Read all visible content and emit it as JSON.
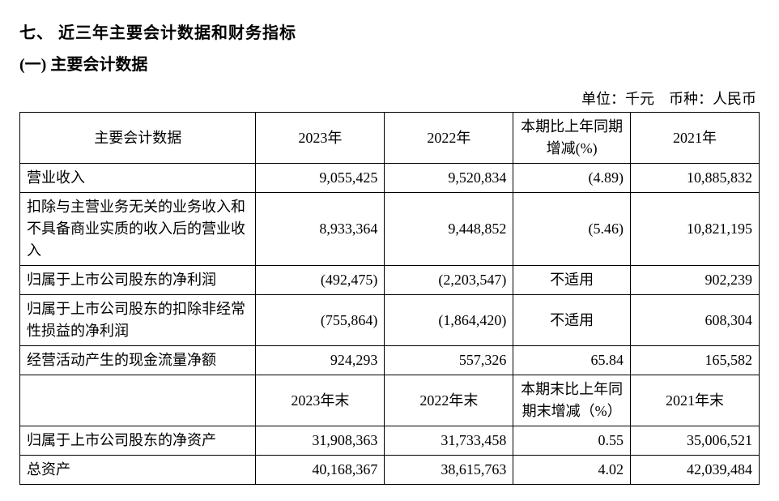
{
  "heading": "七、 近三年主要会计数据和财务指标",
  "subheading": "(一) 主要会计数据",
  "unit_label": "单位：千元",
  "currency_label": "币种：人民币",
  "table": {
    "columns_top": {
      "label": "主要会计数据",
      "y2023": "2023年",
      "y2022": "2022年",
      "change": "本期比上年同期增减(%)",
      "y2021": "2021年"
    },
    "rows_top": [
      {
        "label": "营业收入",
        "y2023": "9,055,425",
        "y2022": "9,520,834",
        "change": "(4.89)",
        "y2021": "10,885,832"
      },
      {
        "label": "扣除与主营业务无关的业务收入和不具备商业实质的收入后的营业收入",
        "y2023": "8,933,364",
        "y2022": "9,448,852",
        "change": "(5.46)",
        "y2021": "10,821,195"
      },
      {
        "label": "归属于上市公司股东的净利润",
        "y2023": "(492,475)",
        "y2022": "(2,203,547)",
        "change": "不适用",
        "y2021": "902,239"
      },
      {
        "label": "归属于上市公司股东的扣除非经常性损益的净利润",
        "y2023": "(755,864)",
        "y2022": "(1,864,420)",
        "change": "不适用",
        "y2021": "608,304"
      },
      {
        "label": "经营活动产生的现金流量净额",
        "y2023": "924,293",
        "y2022": "557,326",
        "change": "65.84",
        "y2021": "165,582"
      }
    ],
    "columns_bottom": {
      "label": "",
      "y2023": "2023年末",
      "y2022": "2022年末",
      "change": "本期末比上年同期末增减（%）",
      "y2021": "2021年末"
    },
    "rows_bottom": [
      {
        "label": "归属于上市公司股东的净资产",
        "y2023": "31,908,363",
        "y2022": "31,733,458",
        "change": "0.55",
        "y2021": "35,006,521"
      },
      {
        "label": "总资产",
        "y2023": "40,168,367",
        "y2022": "38,615,763",
        "change": "4.02",
        "y2021": "42,039,484"
      }
    ],
    "change_center_rows": [
      2,
      3
    ]
  },
  "colors": {
    "text": "#000000",
    "border": "#000000",
    "background": "#ffffff"
  }
}
